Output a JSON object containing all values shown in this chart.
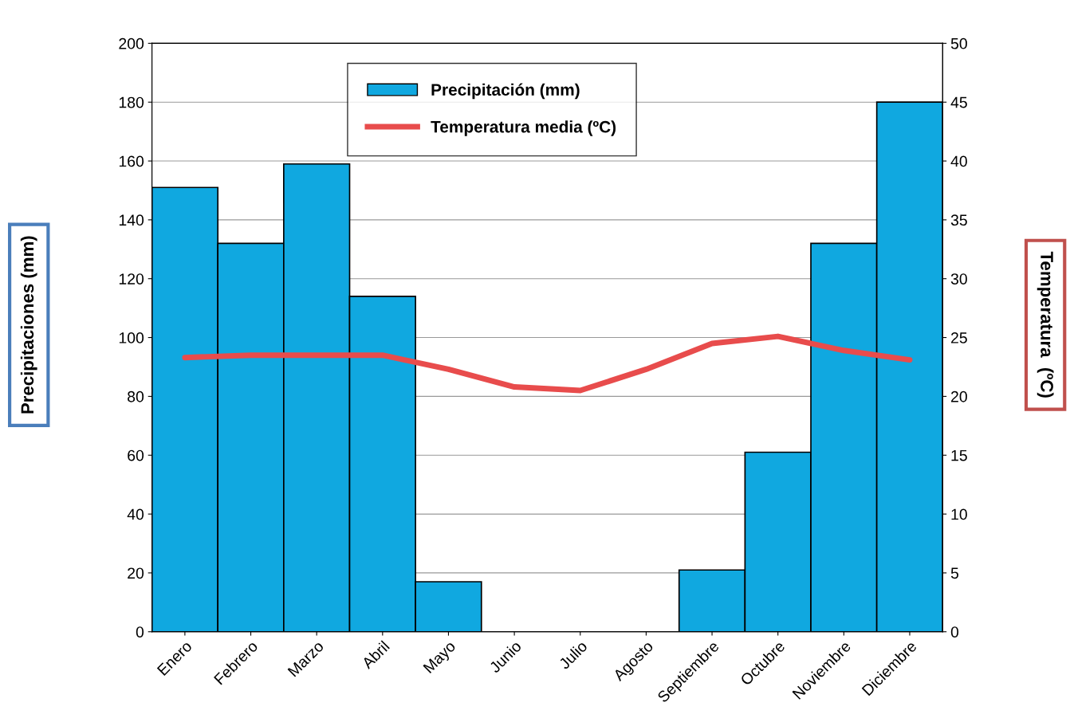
{
  "chart_data": {
    "type": "bar",
    "categories": [
      "Enero",
      "Febrero",
      "Marzo",
      "Abril",
      "Mayo",
      "Junio",
      "Julio",
      "Agosto",
      "Septiembre",
      "Octubre",
      "Noviembre",
      "Diciembre"
    ],
    "series": [
      {
        "name": "Precipitación (mm)",
        "color": "#10a8e0",
        "values": [
          151,
          132,
          159,
          114,
          17,
          null,
          null,
          null,
          21,
          61,
          132,
          180
        ]
      },
      {
        "name": "Temperatura media (ºC)",
        "type": "line",
        "axis": "y2",
        "color": "#e84c4c",
        "values": [
          23.3,
          23.5,
          23.5,
          23.5,
          22.3,
          20.8,
          20.5,
          22.3,
          24.5,
          25.1,
          23.9,
          23.1
        ]
      }
    ],
    "ylabel": "Precipitaciones (mm)",
    "y2label": "Temperatura  (ºC)",
    "ylim": [
      0,
      200
    ],
    "yticks": [
      0,
      20,
      40,
      60,
      80,
      100,
      120,
      140,
      160,
      180,
      200
    ],
    "y2lim": [
      0,
      50
    ],
    "y2ticks": [
      0,
      5,
      10,
      15,
      20,
      25,
      30,
      35,
      40,
      45,
      50
    ],
    "grid": "y",
    "legend": "top",
    "marker": "none",
    "line_style": "solid"
  }
}
